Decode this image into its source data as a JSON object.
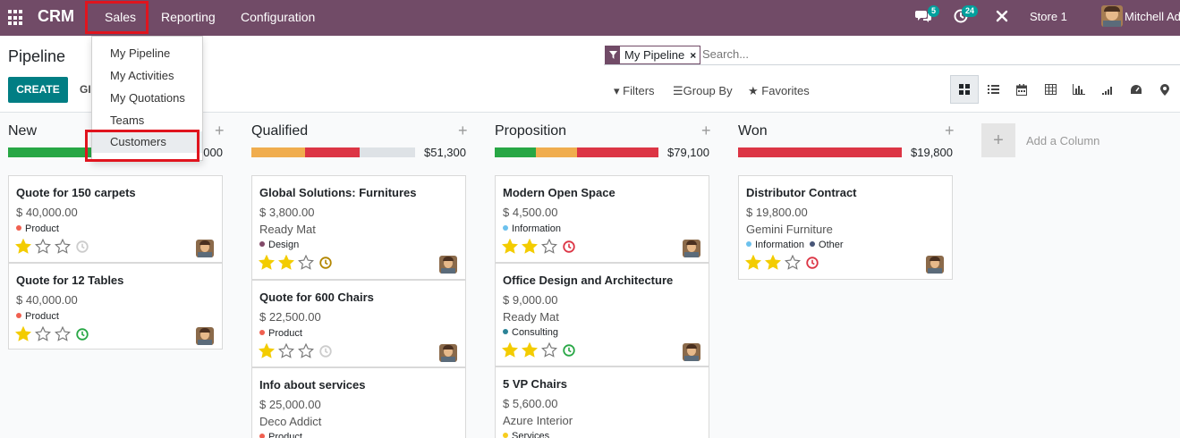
{
  "navbar": {
    "brand": "CRM",
    "menus": [
      "Sales",
      "Reporting",
      "Configuration"
    ],
    "messages_count": "5",
    "activities_count": "24",
    "company": "Store 1",
    "user": "Mitchell Ad",
    "bg_color": "#714b67"
  },
  "dropdown": {
    "items": [
      "My Pipeline",
      "My Activities",
      "My Quotations",
      "Teams",
      "Customers"
    ],
    "hovered": "Customers"
  },
  "control_panel": {
    "breadcrumb": "Pipeline",
    "create_label": "CREATE",
    "generate_label": "GI",
    "search_facet": "My Pipeline",
    "search_placeholder": "Search...",
    "filters_label": "Filters",
    "groupby_label": "Group By",
    "favorites_label": "Favorites",
    "views": [
      "kanban-view-icon",
      "list-view-icon",
      "calendar-view-icon",
      "pivot-view-icon",
      "graph-view-icon",
      "cohort-view-icon",
      "dashboard-view-icon",
      "map-view-icon"
    ],
    "active_view": "kanban-view-icon"
  },
  "columns": [
    {
      "title": "New",
      "total": "000",
      "progress": [
        {
          "color": "#28a745",
          "fraction": 1.0
        }
      ],
      "cards": [
        {
          "title": "Quote for 150 carpets",
          "amount": "$ 40,000.00",
          "customer": "",
          "tags": [
            {
              "label": "Product",
              "color": "#f06050"
            }
          ],
          "stars": 1,
          "activity": "grey"
        },
        {
          "title": "Quote for 12 Tables",
          "amount": "$ 40,000.00",
          "customer": "",
          "tags": [
            {
              "label": "Product",
              "color": "#f06050"
            }
          ],
          "stars": 1,
          "activity": "green"
        }
      ]
    },
    {
      "title": "Qualified",
      "total": "$51,300",
      "progress": [
        {
          "color": "#f0ad4e",
          "fraction": 0.33
        },
        {
          "color": "#dc3545",
          "fraction": 0.33
        },
        {
          "color": "#dee2e6",
          "fraction": 0.34
        }
      ],
      "cards": [
        {
          "title": "Global Solutions: Furnitures",
          "amount": "$ 3,800.00",
          "customer": "Ready Mat",
          "tags": [
            {
              "label": "Design",
              "color": "#814968"
            }
          ],
          "stars": 2,
          "activity": "orange"
        },
        {
          "title": "Quote for 600 Chairs",
          "amount": "$ 22,500.00",
          "customer": "",
          "tags": [
            {
              "label": "Product",
              "color": "#f06050"
            }
          ],
          "stars": 1,
          "activity": "grey"
        },
        {
          "title": "Info about services",
          "amount": "$ 25,000.00",
          "customer": "Deco Addict",
          "tags": [
            {
              "label": "Product",
              "color": "#f06050"
            }
          ],
          "stars": 0,
          "activity": ""
        }
      ]
    },
    {
      "title": "Proposition",
      "total": "$79,100",
      "progress": [
        {
          "color": "#28a745",
          "fraction": 0.25
        },
        {
          "color": "#f0ad4e",
          "fraction": 0.25
        },
        {
          "color": "#dc3545",
          "fraction": 0.5
        }
      ],
      "cards": [
        {
          "title": "Modern Open Space",
          "amount": "$ 4,500.00",
          "customer": "",
          "tags": [
            {
              "label": "Information",
              "color": "#6cc1ed"
            }
          ],
          "stars": 2,
          "activity": "red"
        },
        {
          "title": "Office Design and Architecture",
          "amount": "$ 9,000.00",
          "customer": "Ready Mat",
          "tags": [
            {
              "label": "Consulting",
              "color": "#2c8397"
            }
          ],
          "stars": 2,
          "activity": "green"
        },
        {
          "title": "5 VP Chairs",
          "amount": "$ 5,600.00",
          "customer": "Azure Interior",
          "tags": [
            {
              "label": "Services",
              "color": "#f7cd1f"
            }
          ],
          "stars": 0,
          "activity": ""
        }
      ]
    },
    {
      "title": "Won",
      "total": "$19,800",
      "progress": [
        {
          "color": "#dc3545",
          "fraction": 1.0
        }
      ],
      "cards": [
        {
          "title": "Distributor Contract",
          "amount": "$ 19,800.00",
          "customer": "Gemini Furniture",
          "tags": [
            {
              "label": "Information",
              "color": "#6cc1ed"
            },
            {
              "label": "Other",
              "color": "#475577"
            }
          ],
          "stars": 2,
          "activity": "red"
        }
      ]
    }
  ],
  "add_column": {
    "label": "Add a Column",
    "plus": "+"
  },
  "column_plus": "+"
}
